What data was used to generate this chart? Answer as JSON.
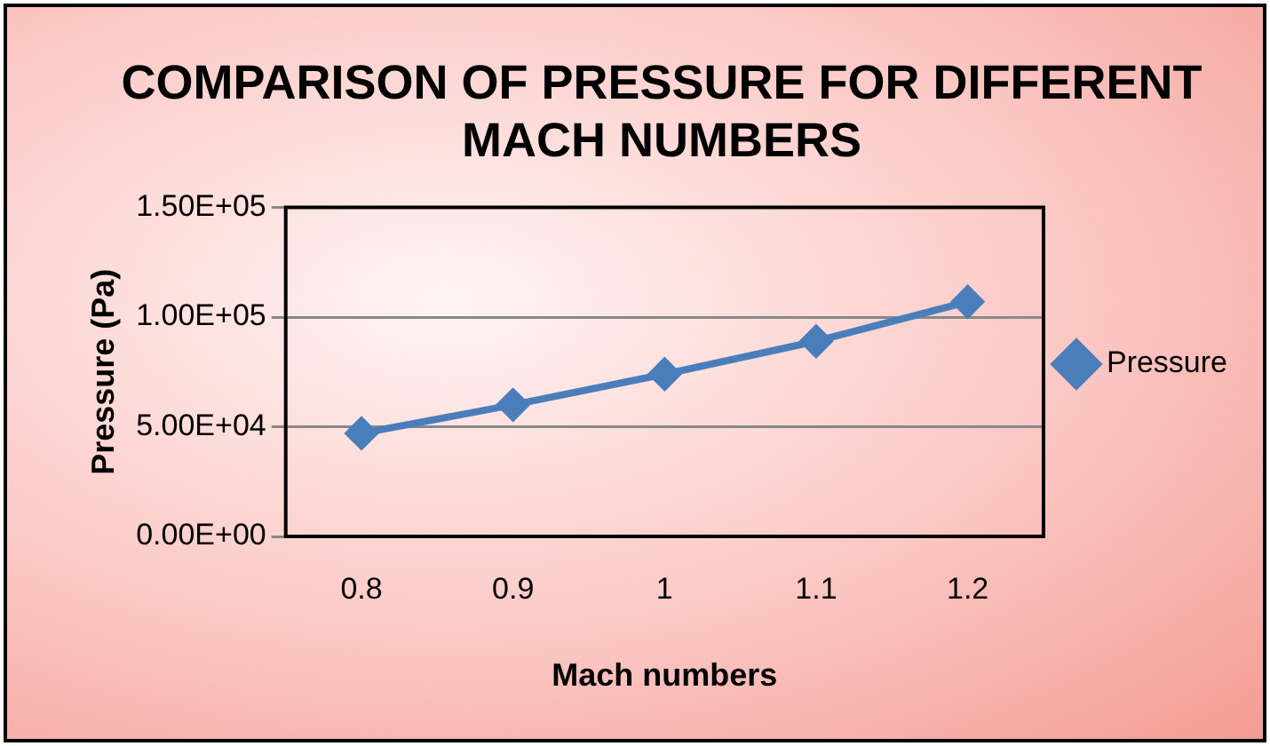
{
  "chart_data": {
    "type": "line",
    "title": "COMPARISON OF PRESSURE FOR DIFFERENT MACH NUMBERS",
    "xlabel": "Mach numbers",
    "ylabel": "Pressure (Pa)",
    "categories": [
      "0.8",
      "0.9",
      "1",
      "1.1",
      "1.2"
    ],
    "series": [
      {
        "name": "Pressure",
        "color": "#4a7ebb",
        "values": [
          47000,
          60000,
          74000,
          89000,
          107000
        ]
      }
    ],
    "ylim": [
      0,
      150000
    ],
    "yticks": [
      {
        "value": 0,
        "label": "0.00E+00"
      },
      {
        "value": 50000,
        "label": "5.00E+04"
      },
      {
        "value": 100000,
        "label": "1.00E+05"
      },
      {
        "value": 150000,
        "label": "1.50E+05"
      }
    ],
    "grid": "y",
    "legend": "right",
    "marker": "diamond",
    "line_style": "solid"
  }
}
